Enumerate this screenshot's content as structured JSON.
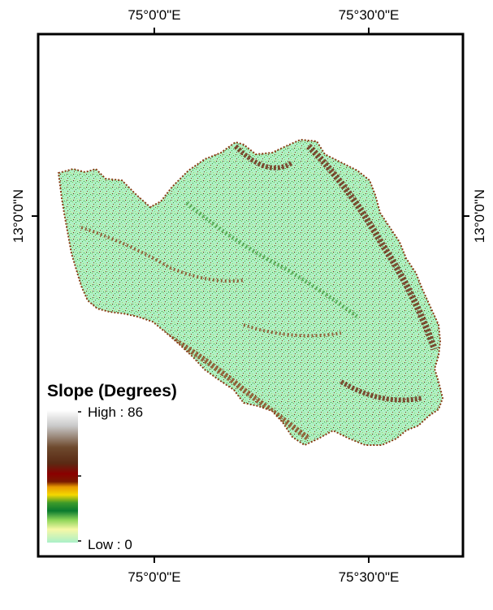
{
  "map": {
    "top_axis_labels": [
      "75°0'0\"E",
      "75°30'0\"E"
    ],
    "bottom_axis_labels": [
      "75°0'0\"E",
      "75°30'0\"E"
    ],
    "left_axis_label": "13°0'0\"N",
    "right_axis_label": "13°0'0\"N"
  },
  "legend": {
    "title": "Slope (Degrees)",
    "high_label": "High : 86",
    "low_label": "Low : 0",
    "ramp_colors": [
      "#ffffff",
      "#c8c8c8",
      "#6e4a2e",
      "#5a2a14",
      "#8b0000",
      "#7a1a00",
      "#e89a00",
      "#f5d800",
      "#3c9a2a",
      "#0a7a2e",
      "#8fd65a",
      "#f6f8a6",
      "#aaf0c8"
    ]
  },
  "raster_colors": {
    "low": "#aef0c4",
    "mid": "#9ad86a",
    "green": "#3f9a3a",
    "brown": "#8a3a14",
    "dark": "#6a1a06"
  }
}
